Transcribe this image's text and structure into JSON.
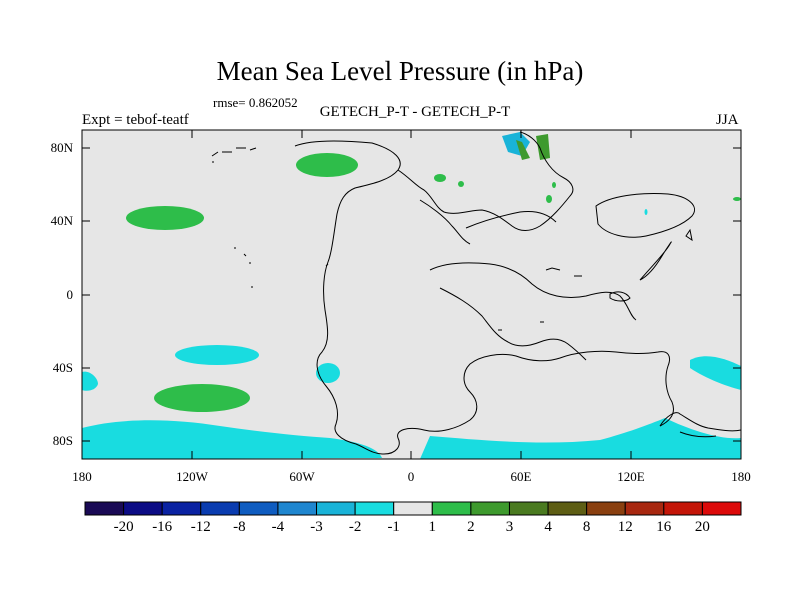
{
  "figure": {
    "title": "Mean Sea Level Pressure (in hPa)",
    "rmse_label": "rmse= 0.862052",
    "left_label": "Expt = tebof-teatf",
    "center_label": "GETECH_P-T - GETECH_P-T",
    "right_label": "JJA"
  },
  "axes": {
    "x_ticks": [
      "180",
      "120W",
      "60W",
      "0",
      "60E",
      "120E",
      "180"
    ],
    "y_ticks": [
      "80N",
      "40N",
      "0",
      "40S",
      "80S"
    ]
  },
  "colorbar": {
    "labels": [
      "-20",
      "-16",
      "-12",
      "-8",
      "-4",
      "-3",
      "-2",
      "-1",
      "1",
      "2",
      "3",
      "4",
      "8",
      "12",
      "16",
      "20"
    ],
    "colors": [
      "#1a0a55",
      "#0c0c85",
      "#0a22a2",
      "#0a3cb0",
      "#0f5cc0",
      "#1f86cf",
      "#19b3d8",
      "#19dce0",
      "#e6e6e6",
      "#2ebd4a",
      "#3e9a2e",
      "#4a7a20",
      "#5e5e14",
      "#8a4010",
      "#a82810",
      "#c41608",
      "#dc0a0a"
    ]
  },
  "chart_data": {
    "type": "heatmap",
    "projection": "cylindrical-equidistant",
    "lon_range": [
      -180,
      180
    ],
    "lat_range": [
      -90,
      90
    ],
    "background_value_range": [
      -1,
      1
    ],
    "background_color": "#e6e6e6",
    "anomaly_regions": [
      {
        "name": "north-pacific-positive",
        "center_lon": -120,
        "center_lat": 43,
        "bin": "1 to 2",
        "color": "#2ebd4a"
      },
      {
        "name": "arctic-positive",
        "center_lon": -37,
        "center_lat": 73,
        "bin": "1 to 2",
        "color": "#2ebd4a"
      },
      {
        "name": "south-pacific-positive",
        "center_lon": -118,
        "center_lat": -56,
        "bin": "1 to 2",
        "color": "#2ebd4a"
      },
      {
        "name": "south-pacific-negative",
        "center_lon": -120,
        "center_lat": -35,
        "bin": "-2 to -1",
        "color": "#19dce0"
      },
      {
        "name": "south-atlantic-negative",
        "center_lon": -41,
        "center_lat": -43,
        "bin": "-2 to -1",
        "color": "#19dce0"
      },
      {
        "name": "southern-ocean-negative",
        "center_lon": 0,
        "center_lat": -80,
        "bin": "-2 to -1",
        "color": "#19dce0"
      },
      {
        "name": "arctic-negative",
        "center_lon": 58,
        "center_lat": 83,
        "bin": "-3 to -1",
        "color": "#19b3d8"
      },
      {
        "name": "arctic-positive-east",
        "center_lon": 72,
        "center_lat": 82,
        "bin": "1 to 3",
        "color": "#3e9a2e"
      }
    ]
  }
}
